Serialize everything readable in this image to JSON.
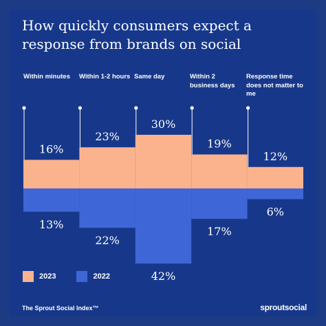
{
  "title": "How quickly consumers expect a response from brands on social",
  "footer": {
    "left": "The Sprout Social Index™",
    "right": "sproutsocial"
  },
  "colors": {
    "background": "#17388a",
    "series_2023": "#fbb38e",
    "series_2022": "#3f66d6",
    "text": "#ffffff"
  },
  "chart_data": {
    "type": "bar",
    "title": "How quickly consumers expect a response from brands on social",
    "categories": [
      "Within minutes",
      "Within 1-2 hours",
      "Same day",
      "Within 2 business days",
      "Response time does not matter to me"
    ],
    "series": [
      {
        "name": "2023",
        "values": [
          16,
          23,
          30,
          19,
          12
        ],
        "color": "#fbb38e",
        "direction": "up"
      },
      {
        "name": "2022",
        "values": [
          13,
          22,
          42,
          17,
          6
        ],
        "color": "#3f66d6",
        "direction": "down"
      }
    ],
    "value_suffix": "%",
    "legend": "bottom-left"
  }
}
